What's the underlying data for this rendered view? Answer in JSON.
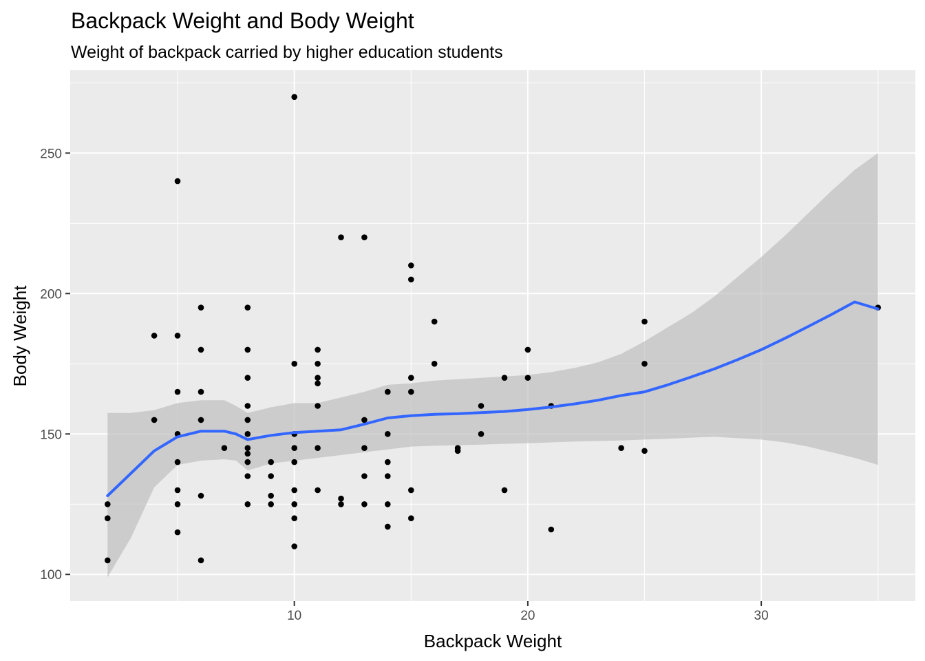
{
  "chart_data": {
    "type": "scatter",
    "title": "Backpack Weight and Body Weight",
    "subtitle": "Weight of backpack carried by higher education students",
    "xlabel": "Backpack Weight",
    "ylabel": "Body Weight",
    "xlim": [
      0.4,
      36.6
    ],
    "ylim": [
      90.5,
      279.5
    ],
    "x_ticks": [
      10,
      20,
      30
    ],
    "y_ticks": [
      100,
      150,
      200,
      250
    ],
    "x_minor": [
      5,
      15,
      25,
      35
    ],
    "y_minor": [
      125,
      175,
      225,
      275
    ],
    "grid": true,
    "colors": {
      "panel_bg": "#ebebeb",
      "grid": "#ffffff",
      "point": "#000000",
      "smooth_line": "#3366ff",
      "ribbon": "#bfbfbf"
    },
    "points": [
      [
        2,
        125
      ],
      [
        2,
        120
      ],
      [
        2,
        105
      ],
      [
        4,
        185
      ],
      [
        4,
        155
      ],
      [
        5,
        240
      ],
      [
        5,
        185
      ],
      [
        5,
        165
      ],
      [
        5,
        150
      ],
      [
        5,
        140
      ],
      [
        5,
        130
      ],
      [
        5,
        125
      ],
      [
        5,
        115
      ],
      [
        6,
        195
      ],
      [
        6,
        180
      ],
      [
        6,
        165
      ],
      [
        6,
        155
      ],
      [
        6,
        128
      ],
      [
        6,
        105
      ],
      [
        7,
        145
      ],
      [
        8,
        195
      ],
      [
        8,
        180
      ],
      [
        8,
        170
      ],
      [
        8,
        160
      ],
      [
        8,
        155
      ],
      [
        8,
        150
      ],
      [
        8,
        145
      ],
      [
        8,
        143
      ],
      [
        8,
        140
      ],
      [
        8,
        135
      ],
      [
        8,
        125
      ],
      [
        9,
        140
      ],
      [
        9,
        135
      ],
      [
        9,
        128
      ],
      [
        9,
        125
      ],
      [
        10,
        270
      ],
      [
        10,
        175
      ],
      [
        10,
        150
      ],
      [
        10,
        145
      ],
      [
        10,
        140
      ],
      [
        10,
        130
      ],
      [
        10,
        125
      ],
      [
        10,
        120
      ],
      [
        10,
        110
      ],
      [
        11,
        180
      ],
      [
        11,
        175
      ],
      [
        11,
        170
      ],
      [
        11,
        168
      ],
      [
        11,
        160
      ],
      [
        11,
        145
      ],
      [
        11,
        130
      ],
      [
        12,
        220
      ],
      [
        12,
        127
      ],
      [
        12,
        125
      ],
      [
        13,
        220
      ],
      [
        13,
        155
      ],
      [
        13,
        145
      ],
      [
        13,
        135
      ],
      [
        13,
        125
      ],
      [
        14,
        165
      ],
      [
        14,
        150
      ],
      [
        14,
        140
      ],
      [
        14,
        135
      ],
      [
        14,
        125
      ],
      [
        14,
        117
      ],
      [
        15,
        210
      ],
      [
        15,
        205
      ],
      [
        15,
        170
      ],
      [
        15,
        165
      ],
      [
        15,
        130
      ],
      [
        15,
        120
      ],
      [
        16,
        190
      ],
      [
        16,
        175
      ],
      [
        17,
        145
      ],
      [
        17,
        144
      ],
      [
        18,
        160
      ],
      [
        18,
        150
      ],
      [
        19,
        170
      ],
      [
        19,
        130
      ],
      [
        20,
        180
      ],
      [
        20,
        170
      ],
      [
        21,
        160
      ],
      [
        21,
        116
      ],
      [
        24,
        145
      ],
      [
        25,
        190
      ],
      [
        25,
        175
      ],
      [
        25,
        144
      ],
      [
        35,
        195
      ]
    ],
    "smooth": {
      "x": [
        2,
        3,
        4,
        5,
        6,
        7,
        7.5,
        8,
        9,
        10,
        11,
        12,
        13,
        14,
        15,
        16,
        17,
        18,
        19,
        20,
        21,
        22,
        23,
        24,
        25,
        26,
        27,
        28,
        29,
        30,
        31,
        32,
        33,
        34,
        35
      ],
      "y": [
        128,
        136,
        144,
        149,
        151,
        151,
        150,
        148,
        149.5,
        150.5,
        151,
        151.5,
        153.5,
        155.7,
        156.5,
        157,
        157.2,
        157.6,
        158,
        158.7,
        159.6,
        160.7,
        162,
        163.7,
        165,
        167.5,
        170.3,
        173.2,
        176.5,
        180,
        184,
        188.2,
        192.5,
        197,
        194.5
      ],
      "upper": [
        157.5,
        157.5,
        158.5,
        161,
        162,
        162,
        160,
        157.5,
        159.5,
        161,
        161,
        163,
        165,
        167.5,
        168,
        169,
        169.5,
        170,
        170.5,
        171,
        172,
        173.5,
        175.5,
        178.5,
        183,
        188,
        193,
        199,
        206,
        213,
        220.5,
        228.5,
        236.5,
        244,
        250
      ],
      "lower": [
        99,
        113,
        131,
        139,
        140.5,
        141,
        140.5,
        137,
        139.5,
        140.5,
        141.5,
        142.5,
        143.5,
        144.5,
        145.5,
        145.8,
        146,
        146.2,
        146.5,
        146.7,
        147,
        147.3,
        147.5,
        147.7,
        148,
        148.3,
        148.7,
        149,
        148.5,
        148,
        147,
        145.5,
        143.5,
        141.5,
        139
      ]
    }
  }
}
